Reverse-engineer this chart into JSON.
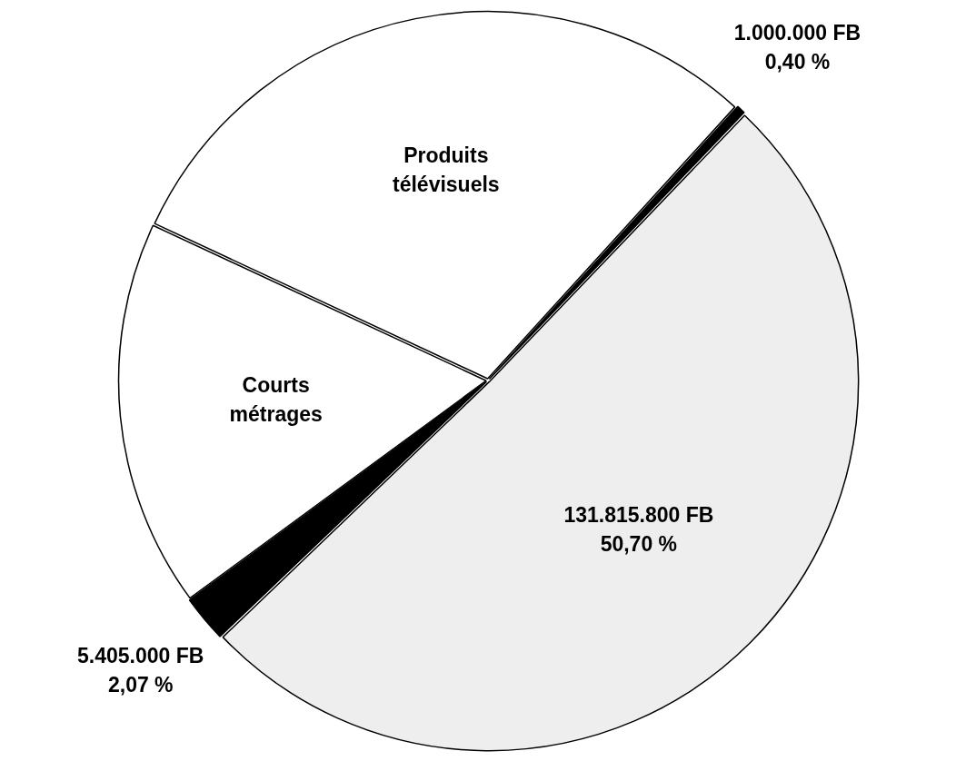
{
  "chart_data": {
    "type": "pie",
    "categories": [
      "Produits télévisuels",
      null,
      null,
      null,
      "Courts métrages"
    ],
    "values": [
      29.8,
      0.4,
      50.7,
      2.07,
      17.03
    ],
    "colors": [
      "#ffffff",
      "#000000",
      "#eeeeee",
      "#000000",
      "#ffffff"
    ],
    "value_labels": [
      null,
      "1.000.000 FB\n0,40 %",
      "131.815.800 FB\n50,70 %",
      "5.405.000 FB\n2,07 %",
      null
    ]
  }
}
